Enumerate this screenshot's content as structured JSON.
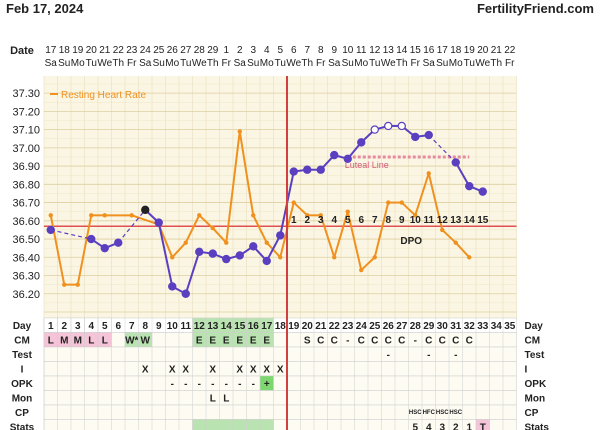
{
  "header": {
    "date_title": "Feb 17, 2024",
    "brand": "FertilityFriend.com"
  },
  "date_row": {
    "label": "Date",
    "days": [
      "17",
      "18",
      "19",
      "20",
      "21",
      "22",
      "23",
      "24",
      "25",
      "26",
      "27",
      "28",
      "29",
      "1",
      "2",
      "3",
      "4",
      "5",
      "6",
      "7",
      "8",
      "9",
      "10",
      "11",
      "12",
      "13",
      "14",
      "15",
      "16",
      "17",
      "18",
      "19",
      "20",
      "21",
      "22"
    ],
    "weekdays": [
      "Sa",
      "Su",
      "Mo",
      "Tu",
      "We",
      "Th",
      "Fr",
      "Sa",
      "Su",
      "Mo",
      "Tu",
      "We",
      "Th",
      "Fr",
      "Sa",
      "Su",
      "Mo",
      "Tu",
      "We",
      "Th",
      "Fr",
      "Sa",
      "Su",
      "Mo",
      "Tu",
      "We",
      "Th",
      "Fr",
      "Sa",
      "Su",
      "Mo",
      "Tu",
      "We",
      "Th",
      "Fr"
    ]
  },
  "chart_data": {
    "type": "line",
    "x": [
      1,
      2,
      3,
      4,
      5,
      6,
      7,
      8,
      9,
      10,
      11,
      12,
      13,
      14,
      15,
      16,
      17,
      18,
      19,
      20,
      21,
      22,
      23,
      24,
      25,
      26,
      27,
      28,
      29,
      30,
      31,
      32,
      33,
      34,
      35
    ],
    "ylim": [
      36.1,
      37.35
    ],
    "yticks": [
      "37.30",
      "37.20",
      "37.10",
      "37.00",
      "36.90",
      "36.80",
      "36.70",
      "36.60",
      "36.50",
      "36.40",
      "36.30",
      "36.20"
    ],
    "ytick_values": [
      37.3,
      37.2,
      37.1,
      37.0,
      36.9,
      36.8,
      36.7,
      36.6,
      36.5,
      36.4,
      36.3,
      36.2
    ],
    "series": [
      {
        "name": "",
        "color": "#5a3fc0",
        "values": [
          36.55,
          null,
          null,
          36.5,
          36.45,
          36.48,
          null,
          36.66,
          36.59,
          36.24,
          36.2,
          36.43,
          36.42,
          36.39,
          36.41,
          36.46,
          36.38,
          36.52,
          36.87,
          36.88,
          36.88,
          36.96,
          36.94,
          37.03,
          37.1,
          37.12,
          37.12,
          37.06,
          37.07,
          null,
          36.92,
          36.79,
          36.76,
          null,
          null
        ],
        "hollow": [
          25,
          26,
          27
        ]
      },
      {
        "name": "Resting Heart Rate",
        "color": "#f0901e",
        "values": [
          36.63,
          36.25,
          36.25,
          36.63,
          36.63,
          null,
          36.63,
          null,
          36.58,
          36.4,
          36.48,
          36.63,
          36.56,
          36.48,
          37.09,
          36.63,
          36.48,
          36.4,
          36.7,
          36.63,
          36.63,
          36.4,
          36.65,
          36.33,
          36.4,
          36.7,
          36.7,
          36.63,
          36.86,
          36.55,
          36.48,
          36.4,
          null,
          null,
          null
        ]
      }
    ],
    "coverline": 36.57,
    "ovulation_day": 18,
    "luteal_line_label": "Luteal Line",
    "luteal_line_value": 36.95,
    "luteal_from": 23,
    "luteal_to": 32,
    "dpo_label": "DPO",
    "dpo_numbers": [
      "1",
      "2",
      "3",
      "4",
      "5",
      "6",
      "7",
      "8",
      "9",
      "10",
      "11",
      "12",
      "13",
      "14",
      "15"
    ],
    "legend_position": "top-left"
  },
  "grid": {
    "day_label": "Day",
    "days": [
      "1",
      "2",
      "3",
      "4",
      "5",
      "6",
      "7",
      "8",
      "9",
      "10",
      "11",
      "12",
      "13",
      "14",
      "15",
      "16",
      "17",
      "18",
      "19",
      "20",
      "21",
      "22",
      "23",
      "24",
      "25",
      "26",
      "27",
      "28",
      "29",
      "30",
      "31",
      "32",
      "33",
      "34",
      "35"
    ],
    "rows": [
      {
        "label": "CM",
        "cells": [
          "L",
          "M",
          "M",
          "L",
          "L",
          "",
          "W*",
          "W",
          "",
          "",
          "",
          "E",
          "E",
          "E",
          "E",
          "E",
          "E",
          "",
          "",
          "S",
          "C",
          "C",
          "-",
          "C",
          "C",
          "C",
          "C",
          "-",
          "C",
          "C",
          "C",
          "C",
          "",
          "",
          ""
        ]
      },
      {
        "label": "Test",
        "cells": [
          "",
          "",
          "",
          "",
          "",
          "",
          "",
          "",
          "",
          "",
          "",
          "",
          "",
          "",
          "",
          "",
          "",
          "",
          "",
          "",
          "",
          "",
          "",
          "",
          "",
          "-",
          "",
          "",
          "-",
          "",
          "-",
          "",
          "",
          "",
          ""
        ]
      },
      {
        "label": "I",
        "cells": [
          "",
          "",
          "",
          "",
          "",
          "",
          "",
          "X",
          "",
          "X",
          "X",
          "",
          "X",
          "",
          "X",
          "X",
          "X",
          "X",
          "",
          "",
          "",
          "",
          "",
          "",
          "",
          "",
          "",
          "",
          "",
          "",
          "",
          "",
          "",
          "",
          ""
        ]
      },
      {
        "label": "OPK",
        "cells": [
          "",
          "",
          "",
          "",
          "",
          "",
          "",
          "",
          "",
          "-",
          "-",
          "-",
          "-",
          "-",
          "-",
          "-",
          "+",
          "",
          "",
          "",
          "",
          "",
          "",
          "",
          "",
          "",
          "",
          "",
          "",
          "",
          "",
          "",
          "",
          "",
          ""
        ]
      },
      {
        "label": "Mon",
        "cells": [
          "",
          "",
          "",
          "",
          "",
          "",
          "",
          "",
          "",
          "",
          "",
          "",
          "L",
          "L",
          "",
          "",
          "",
          "",
          "",
          "",
          "",
          "",
          "",
          "",
          "",
          "",
          "",
          "",
          "",
          "",
          "",
          "",
          "",
          "",
          ""
        ]
      },
      {
        "label": "CP",
        "cells": [
          "",
          "",
          "",
          "",
          "",
          "",
          "",
          "",
          "",
          "",
          "",
          "",
          "",
          "",
          "",
          "",
          "",
          "",
          "",
          "",
          "",
          "",
          "",
          "",
          "",
          "",
          "",
          "HSC",
          "HFC",
          "HSC",
          "HSC",
          "",
          "",
          "",
          ""
        ]
      },
      {
        "label": "Stats",
        "cells": [
          "",
          "",
          "",
          "",
          "",
          "",
          "",
          "",
          "",
          "",
          "",
          "",
          "",
          "",
          "",
          "",
          "",
          "",
          "",
          "",
          "",
          "",
          "",
          "",
          "",
          "",
          "",
          "5",
          "4",
          "3",
          "2",
          "1",
          "T",
          "",
          ""
        ]
      }
    ]
  },
  "colors": {
    "menses": "#f6c4d8",
    "fertile": "#b9e3b0",
    "plus": "#7ed66f",
    "grid_bg": "#fbf6e3",
    "coverline": "#e05050",
    "ovulation": "#d04040"
  }
}
